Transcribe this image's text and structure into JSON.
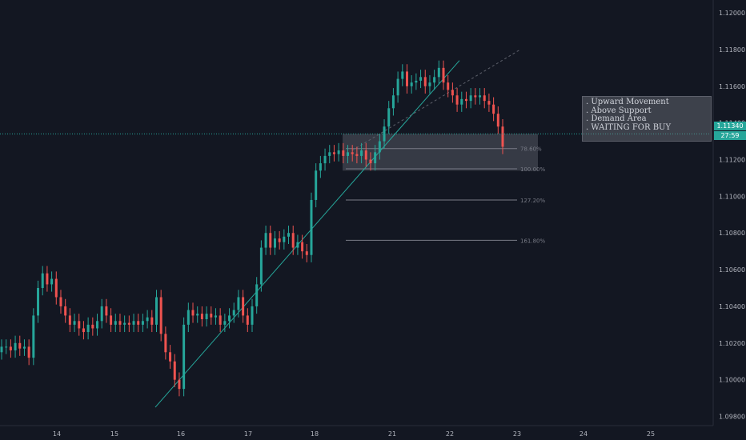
{
  "chart_data": {
    "type": "candlestick",
    "symbol_pair_hint": "",
    "x_tick_labels": [
      "14",
      "15",
      "16",
      "17",
      "18",
      "21",
      "22",
      "23",
      "24",
      "25"
    ],
    "y_ticks": [
      "1.12000",
      "1.11800",
      "1.11600",
      "1.11400",
      "1.11200",
      "1.11000",
      "1.10800",
      "1.10600",
      "1.10400",
      "1.10200",
      "1.10000",
      "1.09800"
    ],
    "y_tick_values": [
      1.12,
      1.118,
      1.116,
      1.114,
      1.112,
      1.11,
      1.108,
      1.106,
      1.104,
      1.102,
      1.1,
      1.098
    ],
    "ylim": [
      1.0975,
      1.1207
    ],
    "current_price": 1.1134,
    "current_price_label": "1.11340",
    "countdown_label": "27:59",
    "grid": false,
    "fib_levels": [
      {
        "label": "78.60%",
        "price": 1.1126
      },
      {
        "label": "100.00%",
        "price": 1.1115
      },
      {
        "label": "127.20%",
        "price": 1.1098
      },
      {
        "label": "161.80%",
        "price": 1.1076
      }
    ],
    "demand_zone": {
      "top": 1.1134,
      "bottom": 1.1114
    },
    "trendline": {
      "start_price": 1.0985,
      "end_price": 1.1174
    },
    "trendline_extension": {
      "start_price": 1.1125,
      "end_price": 1.118
    },
    "candles_close": [
      1.1018,
      1.1018,
      1.1016,
      1.102,
      1.1017,
      1.1018,
      1.1012,
      1.1035,
      1.105,
      1.1058,
      1.1052,
      1.1055,
      1.1045,
      1.104,
      1.1035,
      1.103,
      1.1032,
      1.1028,
      1.1026,
      1.103,
      1.1028,
      1.1032,
      1.104,
      1.1035,
      1.103,
      1.1032,
      1.103,
      1.1031,
      1.103,
      1.1032,
      1.103,
      1.1032,
      1.1034,
      1.103,
      1.1045,
      1.1025,
      1.1015,
      1.101,
      1.1,
      1.0995,
      1.103,
      1.1038,
      1.1035,
      1.1036,
      1.1033,
      1.1036,
      1.1034,
      1.1035,
      1.103,
      1.1032,
      1.1035,
      1.1038,
      1.1045,
      1.1035,
      1.103,
      1.104,
      1.1052,
      1.1072,
      1.108,
      1.1072,
      1.1077,
      1.1075,
      1.1078,
      1.108,
      1.1072,
      1.1075,
      1.107,
      1.1068,
      1.1098,
      1.1114,
      1.1118,
      1.1122,
      1.1124,
      1.1123,
      1.1125,
      1.1122,
      1.1124,
      1.1123,
      1.1122,
      1.1125,
      1.112,
      1.1118,
      1.1124,
      1.113,
      1.1138,
      1.1148,
      1.1155,
      1.1164,
      1.1168,
      1.116,
      1.1162,
      1.1163,
      1.1165,
      1.116,
      1.1162,
      1.1165,
      1.117,
      1.1162,
      1.1158,
      1.1155,
      1.115,
      1.1153,
      1.1152,
      1.1155,
      1.1154,
      1.1155,
      1.1152,
      1.115,
      1.1145,
      1.1138,
      1.1127
    ]
  },
  "annotation": {
    "lines": [
      ". Upward Movement",
      ". Above Support",
      ". Demand Area",
      ". WAITING FOR BUY"
    ]
  },
  "colors": {
    "background": "#131722",
    "up": "#26a69a",
    "down": "#ef5350",
    "text": "#b2b5be",
    "trendline": "#26a69a"
  }
}
